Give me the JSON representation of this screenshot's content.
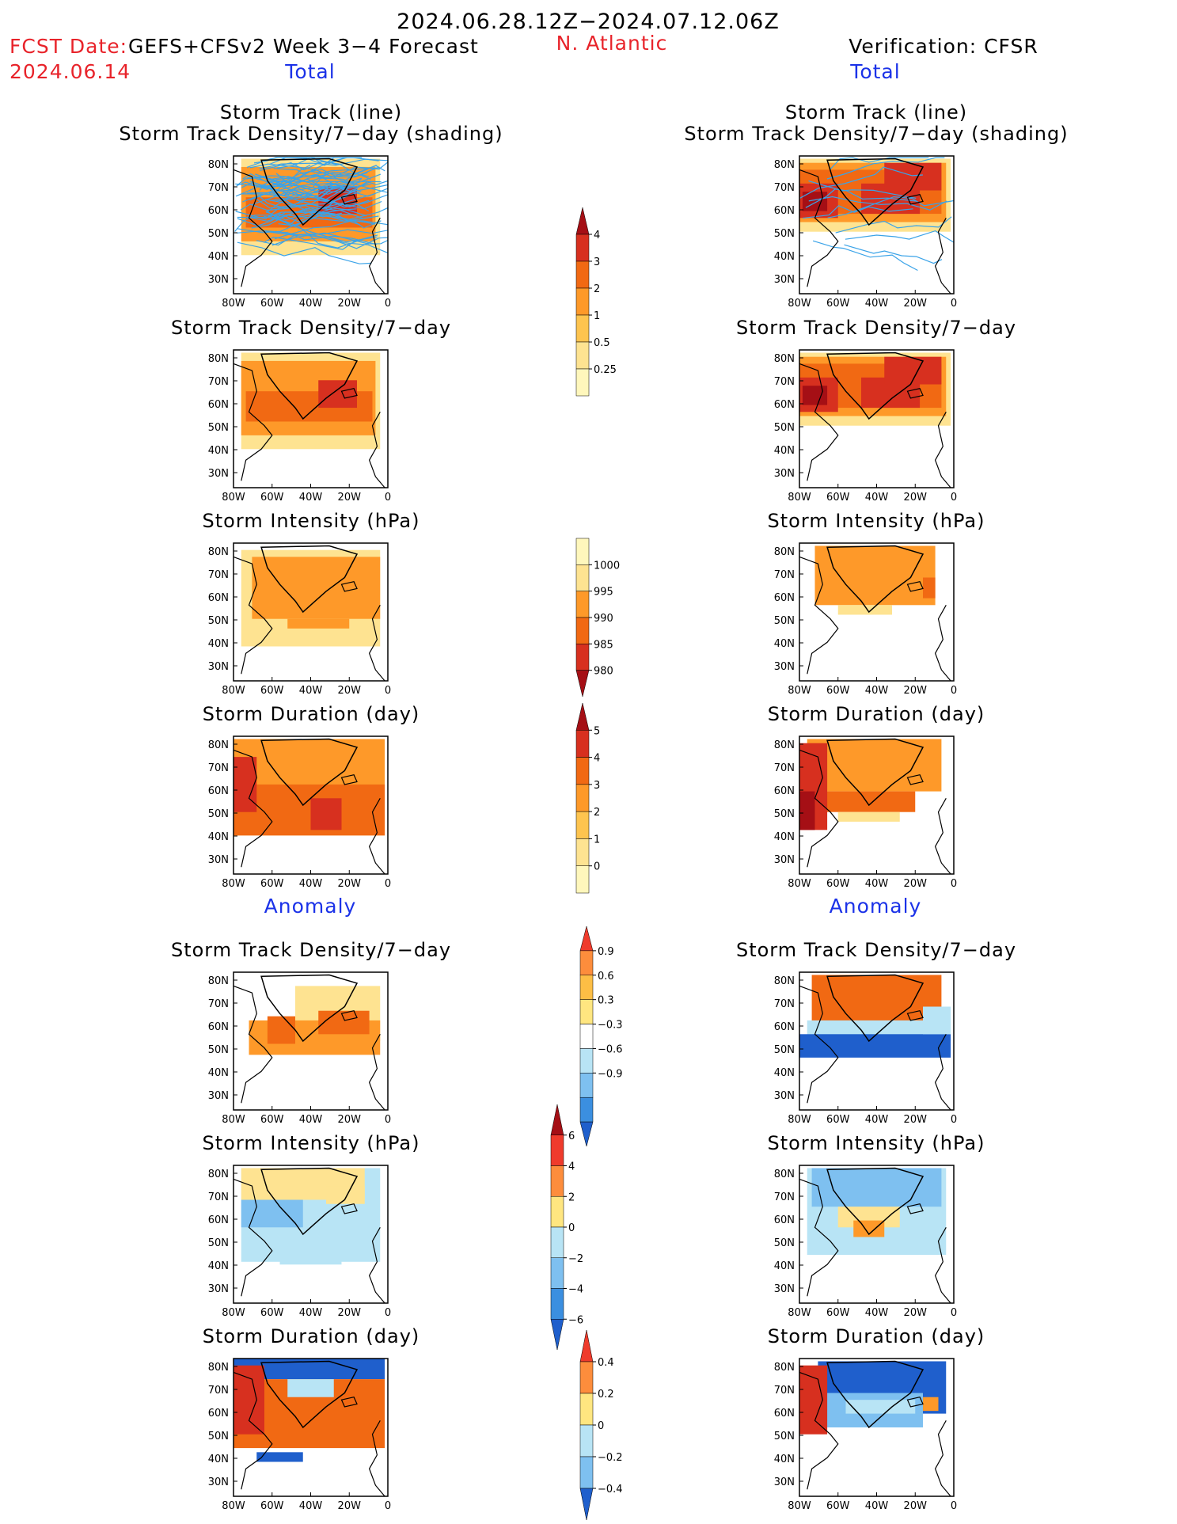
{
  "header": {
    "date_range": "2024.06.28.12Z−2024.07.12.06Z",
    "fcst_label": "FCST Date:",
    "model": "GEFS+CFSv2 Week 3−4 Forecast",
    "fcst_date": "2024.06.14",
    "region": "N. Atlantic",
    "verification": "Verification: CFSR"
  },
  "sections": {
    "total": "Total",
    "anomaly": "Anomaly"
  },
  "titles": {
    "track_line": "Storm Track (line)",
    "track_shading": "Storm Track Density/7−day (shading)",
    "density": "Storm Track Density/7−day",
    "intensity": "Storm Intensity (hPa)",
    "duration": "Storm Duration (day)"
  },
  "axes": {
    "lat": [
      "80N",
      "70N",
      "60N",
      "50N",
      "40N",
      "30N"
    ],
    "lon": [
      "80W",
      "60W",
      "40W",
      "20W",
      "0"
    ]
  },
  "colorbars": [
    {
      "id": "density",
      "labels": [
        "4",
        "3",
        "2",
        "1",
        "0.5",
        "0.25"
      ],
      "colors": [
        "#a50f15",
        "#d7301f",
        "#f16913",
        "#fe9929",
        "#fec44f",
        "#fee391",
        "#fff7bc"
      ]
    },
    {
      "id": "intensity",
      "labels": [
        "1000",
        "995",
        "990",
        "985",
        "980"
      ],
      "colors": [
        "#fff7bc",
        "#fee391",
        "#fe9929",
        "#f16913",
        "#d7301f",
        "#a50f15"
      ]
    },
    {
      "id": "duration",
      "labels": [
        "5",
        "4",
        "3",
        "2",
        "1",
        "0"
      ],
      "colors": [
        "#a50f15",
        "#d7301f",
        "#f16913",
        "#fe9929",
        "#fec44f",
        "#fee391",
        "#fff7bc"
      ]
    },
    {
      "id": "density-anom",
      "labels": [
        "0.9",
        "0.6",
        "0.3",
        "−0.3",
        "−0.6",
        "−0.9"
      ],
      "colors": [
        "#ef3b2c",
        "#fd8d3c",
        "#fdbe45",
        "#ffe680",
        "#ffffff",
        "#b8e4f5",
        "#7ec0f0",
        "#3b8fe0",
        "#1f5fcc"
      ]
    },
    {
      "id": "intensity-anom",
      "labels": [
        "6",
        "4",
        "2",
        "0",
        "−2",
        "−4",
        "−6"
      ],
      "colors": [
        "#a50f15",
        "#ef3b2c",
        "#fd8d3c",
        "#ffe680",
        "#b8e4f5",
        "#7ec0f0",
        "#3b8fe0",
        "#1f5fcc"
      ]
    },
    {
      "id": "duration-anom",
      "labels": [
        "0.4",
        "0.2",
        "0",
        "−0.2",
        "−0.4"
      ],
      "colors": [
        "#ef3b2c",
        "#fd8d3c",
        "#ffe680",
        "#b8e4f5",
        "#7ec0f0",
        "#1f5fcc"
      ]
    }
  ],
  "palette": {
    "light_yellow": "#fee391",
    "orange": "#fe9929",
    "dark_orange": "#f16913",
    "red": "#d7301f",
    "dark_red": "#a50f15",
    "light_blue": "#b8e4f5",
    "mid_blue": "#7ec0f0",
    "blue": "#1f5fcc",
    "track_line": "#3aa3e8"
  }
}
